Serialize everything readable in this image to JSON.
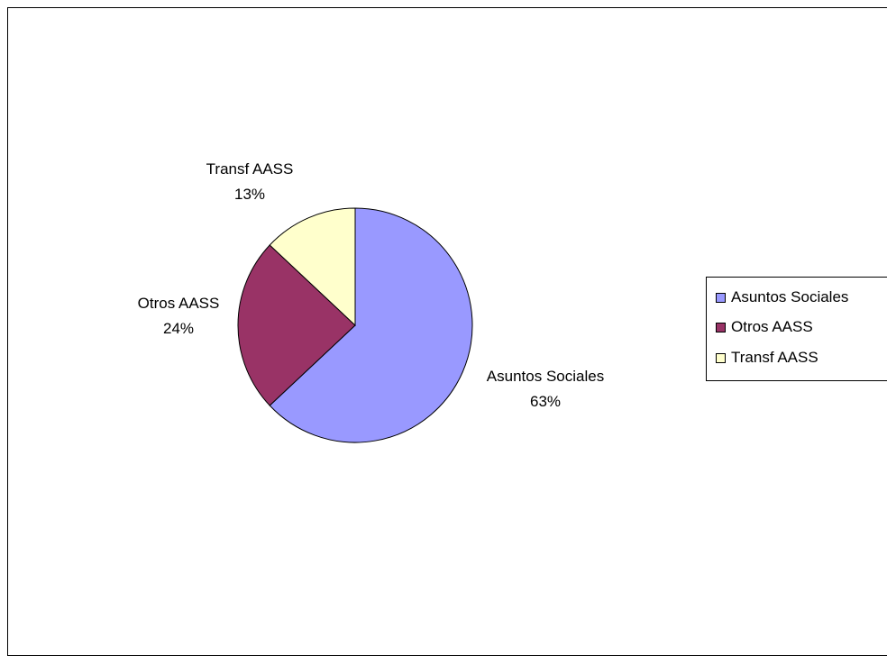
{
  "chart_data": {
    "type": "pie",
    "categories": [
      "Asuntos Sociales",
      "Otros AASS",
      "Transf AASS"
    ],
    "values": [
      63,
      24,
      13
    ],
    "value_labels": [
      "63%",
      "24%",
      "13%"
    ],
    "colors": [
      "#9999ff",
      "#993366",
      "#ffffcc"
    ],
    "legend_position": "right",
    "title": ""
  },
  "legend": {
    "items": [
      {
        "label": "Asuntos Sociales",
        "color": "#9999ff"
      },
      {
        "label": "Otros AASS",
        "color": "#993366"
      },
      {
        "label": "Transf AASS",
        "color": "#ffffcc"
      }
    ]
  }
}
